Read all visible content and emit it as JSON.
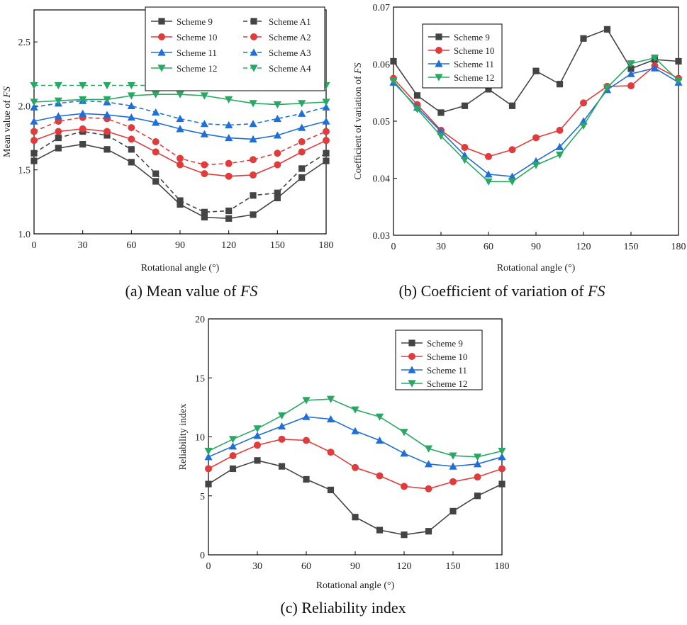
{
  "chart_data": [
    {
      "id": "a",
      "type": "line",
      "caption_prefix": "(a) Mean value of ",
      "caption_italic": "FS",
      "xlabel": "Rotational angle (°)",
      "ylabel_prefix": "Mean value of ",
      "ylabel_italic": "FS",
      "xlim": [
        0,
        180
      ],
      "ylim": [
        1.0,
        2.75
      ],
      "xticks": [
        0,
        30,
        60,
        90,
        120,
        150,
        180
      ],
      "yticks": [
        1.0,
        1.5,
        2.0,
        2.5
      ],
      "ytick_format": 1,
      "legend_position": "top-right",
      "legend_columns": 2,
      "x": [
        0,
        15,
        30,
        45,
        60,
        75,
        90,
        105,
        120,
        135,
        150,
        165,
        180
      ],
      "series": [
        {
          "name": "Scheme 9",
          "color": "#444444",
          "marker": "square",
          "dashed": false,
          "values": [
            1.57,
            1.67,
            1.7,
            1.66,
            1.56,
            1.41,
            1.23,
            1.13,
            1.12,
            1.15,
            1.28,
            1.44,
            1.57
          ]
        },
        {
          "name": "Scheme A1",
          "color": "#444444",
          "marker": "square",
          "dashed": true,
          "values": [
            1.63,
            1.75,
            1.8,
            1.77,
            1.66,
            1.47,
            1.26,
            1.17,
            1.18,
            1.3,
            1.32,
            1.51,
            1.63
          ]
        },
        {
          "name": "Scheme 10",
          "color": "#e03c3c",
          "marker": "circle",
          "dashed": false,
          "values": [
            1.73,
            1.8,
            1.82,
            1.8,
            1.74,
            1.64,
            1.54,
            1.47,
            1.45,
            1.46,
            1.54,
            1.64,
            1.73
          ]
        },
        {
          "name": "Scheme A2",
          "color": "#e03c3c",
          "marker": "circle",
          "dashed": true,
          "values": [
            1.8,
            1.88,
            1.91,
            1.9,
            1.83,
            1.72,
            1.59,
            1.54,
            1.55,
            1.58,
            1.63,
            1.72,
            1.8
          ]
        },
        {
          "name": "Scheme 11",
          "color": "#1f6fd6",
          "marker": "triangle-up",
          "dashed": false,
          "values": [
            1.88,
            1.92,
            1.94,
            1.93,
            1.91,
            1.87,
            1.82,
            1.78,
            1.75,
            1.74,
            1.77,
            1.83,
            1.88
          ]
        },
        {
          "name": "Scheme A3",
          "color": "#1f6fd6",
          "marker": "triangle-up",
          "dashed": true,
          "values": [
            1.99,
            2.02,
            2.04,
            2.03,
            2.0,
            1.95,
            1.9,
            1.86,
            1.85,
            1.86,
            1.9,
            1.94,
            1.99
          ]
        },
        {
          "name": "Scheme 12",
          "color": "#28a862",
          "marker": "triangle-down",
          "dashed": false,
          "values": [
            2.03,
            2.04,
            2.05,
            2.05,
            2.08,
            2.09,
            2.09,
            2.08,
            2.05,
            2.02,
            2.01,
            2.02,
            2.03
          ]
        },
        {
          "name": "Scheme A4",
          "color": "#28a862",
          "marker": "triangle-down",
          "dashed": true,
          "values": [
            2.16,
            2.16,
            2.16,
            2.16,
            2.16,
            2.16,
            2.16,
            2.16,
            2.16,
            2.16,
            2.16,
            2.16,
            2.16
          ]
        }
      ]
    },
    {
      "id": "b",
      "type": "line",
      "caption_prefix": "(b) Coefficient of variation of ",
      "caption_italic": "FS",
      "xlabel": "Rotational angle (°)",
      "ylabel_prefix": "Coefficient of variation of ",
      "ylabel_italic": "FS",
      "xlim": [
        0,
        180
      ],
      "ylim": [
        0.03,
        0.07
      ],
      "xticks": [
        0,
        30,
        60,
        90,
        120,
        150,
        180
      ],
      "yticks": [
        0.03,
        0.04,
        0.05,
        0.06,
        0.07
      ],
      "ytick_format": 2,
      "legend_position": "top-left",
      "legend_columns": 1,
      "x": [
        0,
        15,
        30,
        45,
        60,
        75,
        90,
        105,
        120,
        135,
        150,
        165,
        180
      ],
      "series": [
        {
          "name": "Scheme 9",
          "color": "#444444",
          "marker": "square",
          "dashed": false,
          "values": [
            0.0605,
            0.0545,
            0.0515,
            0.0527,
            0.0556,
            0.0527,
            0.0588,
            0.0565,
            0.0645,
            0.0661,
            0.0592,
            0.0608,
            0.0605
          ]
        },
        {
          "name": "Scheme 10",
          "color": "#e03c3c",
          "marker": "circle",
          "dashed": false,
          "values": [
            0.0575,
            0.0529,
            0.0484,
            0.0454,
            0.0438,
            0.045,
            0.0471,
            0.0484,
            0.0532,
            0.0561,
            0.0562,
            0.0597,
            0.0575
          ]
        },
        {
          "name": "Scheme 11",
          "color": "#1f6fd6",
          "marker": "triangle-up",
          "dashed": false,
          "values": [
            0.0568,
            0.0524,
            0.0482,
            0.044,
            0.0407,
            0.0403,
            0.043,
            0.0455,
            0.05,
            0.0555,
            0.0583,
            0.0593,
            0.0568
          ]
        },
        {
          "name": "Scheme 12",
          "color": "#28a862",
          "marker": "triangle-down",
          "dashed": false,
          "values": [
            0.0571,
            0.0521,
            0.0474,
            0.0432,
            0.0394,
            0.0394,
            0.0423,
            0.0441,
            0.0492,
            0.0559,
            0.0601,
            0.0611,
            0.0571
          ]
        }
      ]
    },
    {
      "id": "c",
      "type": "line",
      "caption_prefix": "(c) Reliability index",
      "caption_italic": "",
      "xlabel": "Rotational angle (°)",
      "ylabel_prefix": "Reliability index",
      "ylabel_italic": "",
      "xlim": [
        0,
        180
      ],
      "ylim": [
        0,
        20
      ],
      "xticks": [
        0,
        30,
        60,
        90,
        120,
        150,
        180
      ],
      "yticks": [
        0,
        5,
        10,
        15,
        20
      ],
      "ytick_format": 0,
      "legend_position": "top-right",
      "legend_columns": 1,
      "x": [
        0,
        15,
        30,
        45,
        60,
        75,
        90,
        105,
        120,
        135,
        150,
        165,
        180
      ],
      "series": [
        {
          "name": "Scheme 9",
          "color": "#444444",
          "marker": "square",
          "dashed": false,
          "values": [
            6.0,
            7.3,
            8.0,
            7.5,
            6.4,
            5.5,
            3.2,
            2.1,
            1.7,
            2.0,
            3.7,
            5.0,
            6.0
          ]
        },
        {
          "name": "Scheme 10",
          "color": "#e03c3c",
          "marker": "circle",
          "dashed": false,
          "values": [
            7.3,
            8.4,
            9.3,
            9.8,
            9.7,
            8.7,
            7.4,
            6.7,
            5.8,
            5.6,
            6.2,
            6.6,
            7.3
          ]
        },
        {
          "name": "Scheme 11",
          "color": "#1f6fd6",
          "marker": "triangle-up",
          "dashed": false,
          "values": [
            8.3,
            9.2,
            10.1,
            10.9,
            11.7,
            11.5,
            10.5,
            9.7,
            8.6,
            7.7,
            7.5,
            7.7,
            8.3
          ]
        },
        {
          "name": "Scheme 12",
          "color": "#28a862",
          "marker": "triangle-down",
          "dashed": false,
          "values": [
            8.8,
            9.8,
            10.7,
            11.8,
            13.1,
            13.2,
            12.3,
            11.7,
            10.4,
            9.0,
            8.4,
            8.3,
            8.8
          ]
        }
      ]
    }
  ]
}
